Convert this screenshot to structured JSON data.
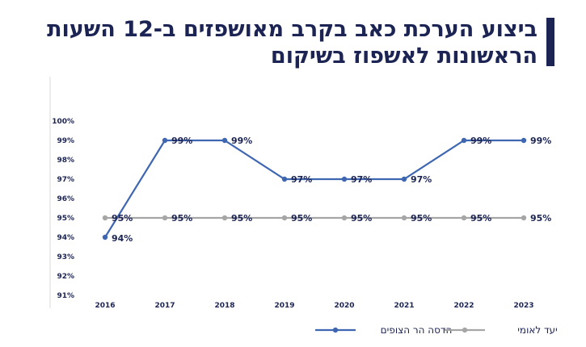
{
  "header": {
    "title_line1": "ביצוע הערכת כאב בקרב מאושפזים ב-12 השעות",
    "title_line2": "הראשונות לאשפוז בשיקום"
  },
  "colors": {
    "accent": "#1c2453",
    "series_hadassah": "#3f67b1",
    "series_target": "#a6a6a6"
  },
  "chart_data": {
    "type": "line",
    "title": "ביצוע הערכת כאב בקרב מאושפזים ב-12 השעות הראשונות לאשפוז בשיקום",
    "categories": [
      "2016",
      "2017",
      "2018",
      "2019",
      "2020",
      "2021",
      "2022",
      "2023"
    ],
    "ylim": [
      91,
      100
    ],
    "yticks": [
      "91%",
      "92%",
      "93%",
      "94%",
      "95%",
      "96%",
      "97%",
      "98%",
      "99%",
      "100%"
    ],
    "series": [
      {
        "name": "הדסה הר הצופים",
        "values": [
          94,
          99,
          99,
          97,
          97,
          97,
          99,
          99
        ],
        "labels": [
          "94%",
          "99%",
          "99%",
          "97%",
          "97%",
          "97%",
          "99%",
          "99%"
        ]
      },
      {
        "name": "יעד לאומי",
        "values": [
          95,
          95,
          95,
          95,
          95,
          95,
          95,
          95
        ],
        "labels": [
          "95%",
          "95%",
          "95%",
          "95%",
          "95%",
          "95%",
          "95%",
          "95%"
        ]
      }
    ],
    "grid": false,
    "legend_position": "bottom-right"
  }
}
